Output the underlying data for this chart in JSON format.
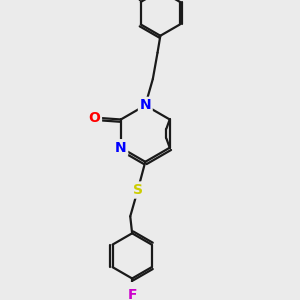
{
  "background_color": "#ebebeb",
  "bond_color": "#1a1a1a",
  "atom_colors": {
    "O": "#ff0000",
    "N": "#0000ff",
    "S": "#cccc00",
    "F": "#cc00cc",
    "C": "#1a1a1a"
  },
  "figsize": [
    3.0,
    3.0
  ],
  "dpi": 100
}
